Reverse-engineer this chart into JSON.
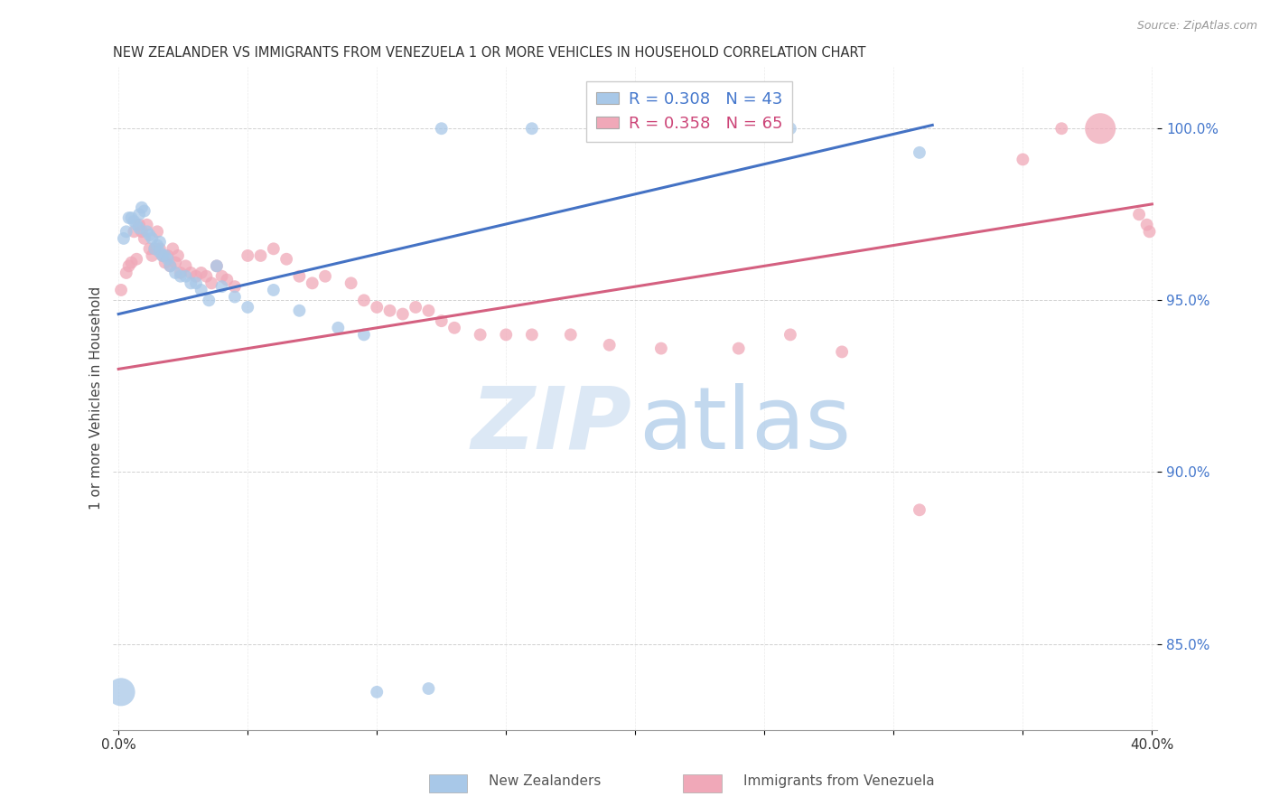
{
  "title": "NEW ZEALANDER VS IMMIGRANTS FROM VENEZUELA 1 OR MORE VEHICLES IN HOUSEHOLD CORRELATION CHART",
  "source": "Source: ZipAtlas.com",
  "ylabel": "1 or more Vehicles in Household",
  "ytick_labels": [
    "85.0%",
    "90.0%",
    "95.0%",
    "100.0%"
  ],
  "ytick_values": [
    0.85,
    0.9,
    0.95,
    1.0
  ],
  "xlim": [
    -0.002,
    0.402
  ],
  "ylim": [
    0.825,
    1.018
  ],
  "blue_color": "#a8c8e8",
  "pink_color": "#f0a8b8",
  "blue_line_color": "#4472c4",
  "pink_line_color": "#d46080",
  "blue_line_x0": 0.0,
  "blue_line_y0": 0.946,
  "blue_line_x1": 0.315,
  "blue_line_y1": 1.001,
  "pink_line_x0": 0.0,
  "pink_line_y0": 0.93,
  "pink_line_x1": 0.4,
  "pink_line_y1": 0.978,
  "footer_label1": "New Zealanders",
  "footer_label2": "Immigrants from Venezuela",
  "blue_x": [
    0.001,
    0.002,
    0.003,
    0.004,
    0.005,
    0.006,
    0.007,
    0.008,
    0.008,
    0.009,
    0.01,
    0.011,
    0.012,
    0.013,
    0.014,
    0.015,
    0.016,
    0.016,
    0.017,
    0.018,
    0.019,
    0.02,
    0.022,
    0.024,
    0.026,
    0.028,
    0.03,
    0.032,
    0.035,
    0.038,
    0.04,
    0.045,
    0.05,
    0.06,
    0.07,
    0.085,
    0.095,
    0.1,
    0.12,
    0.125,
    0.16,
    0.26,
    0.31
  ],
  "blue_y": [
    0.836,
    0.968,
    0.97,
    0.974,
    0.974,
    0.973,
    0.972,
    0.971,
    0.975,
    0.977,
    0.976,
    0.97,
    0.969,
    0.968,
    0.965,
    0.966,
    0.964,
    0.967,
    0.963,
    0.963,
    0.962,
    0.96,
    0.958,
    0.957,
    0.957,
    0.955,
    0.955,
    0.953,
    0.95,
    0.96,
    0.954,
    0.951,
    0.948,
    0.953,
    0.947,
    0.942,
    0.94,
    0.836,
    0.837,
    1.0,
    1.0,
    1.0,
    0.993
  ],
  "pink_x": [
    0.001,
    0.003,
    0.004,
    0.005,
    0.006,
    0.007,
    0.008,
    0.009,
    0.01,
    0.011,
    0.012,
    0.013,
    0.014,
    0.015,
    0.016,
    0.017,
    0.018,
    0.019,
    0.02,
    0.021,
    0.022,
    0.023,
    0.024,
    0.026,
    0.028,
    0.03,
    0.032,
    0.034,
    0.036,
    0.038,
    0.04,
    0.042,
    0.045,
    0.05,
    0.055,
    0.06,
    0.065,
    0.07,
    0.075,
    0.08,
    0.09,
    0.095,
    0.1,
    0.105,
    0.11,
    0.115,
    0.12,
    0.125,
    0.13,
    0.14,
    0.15,
    0.16,
    0.175,
    0.19,
    0.21,
    0.24,
    0.26,
    0.28,
    0.31,
    0.35,
    0.365,
    0.38,
    0.395,
    0.398,
    0.399
  ],
  "pink_y": [
    0.953,
    0.958,
    0.96,
    0.961,
    0.97,
    0.962,
    0.972,
    0.97,
    0.968,
    0.972,
    0.965,
    0.963,
    0.965,
    0.97,
    0.965,
    0.963,
    0.961,
    0.963,
    0.96,
    0.965,
    0.961,
    0.963,
    0.958,
    0.96,
    0.958,
    0.957,
    0.958,
    0.957,
    0.955,
    0.96,
    0.957,
    0.956,
    0.954,
    0.963,
    0.963,
    0.965,
    0.962,
    0.957,
    0.955,
    0.957,
    0.955,
    0.95,
    0.948,
    0.947,
    0.946,
    0.948,
    0.947,
    0.944,
    0.942,
    0.94,
    0.94,
    0.94,
    0.94,
    0.937,
    0.936,
    0.936,
    0.94,
    0.935,
    0.889,
    0.991,
    1.0,
    1.0,
    0.975,
    0.972,
    0.97
  ],
  "blue_dot_sizes": [
    500,
    100,
    100,
    100,
    100,
    100,
    100,
    100,
    100,
    100,
    100,
    100,
    100,
    100,
    100,
    100,
    100,
    100,
    100,
    100,
    100,
    100,
    100,
    100,
    100,
    100,
    100,
    100,
    100,
    100,
    100,
    100,
    100,
    100,
    100,
    100,
    100,
    100,
    100,
    100,
    100,
    100,
    100
  ],
  "pink_dot_sizes": [
    100,
    100,
    100,
    100,
    100,
    100,
    100,
    100,
    100,
    100,
    100,
    100,
    100,
    100,
    100,
    100,
    100,
    100,
    100,
    100,
    100,
    100,
    100,
    100,
    100,
    100,
    100,
    100,
    100,
    100,
    100,
    100,
    100,
    100,
    100,
    100,
    100,
    100,
    100,
    100,
    100,
    100,
    100,
    100,
    100,
    100,
    100,
    100,
    100,
    100,
    100,
    100,
    100,
    100,
    100,
    100,
    100,
    100,
    100,
    100,
    100,
    600,
    100,
    100,
    100
  ]
}
